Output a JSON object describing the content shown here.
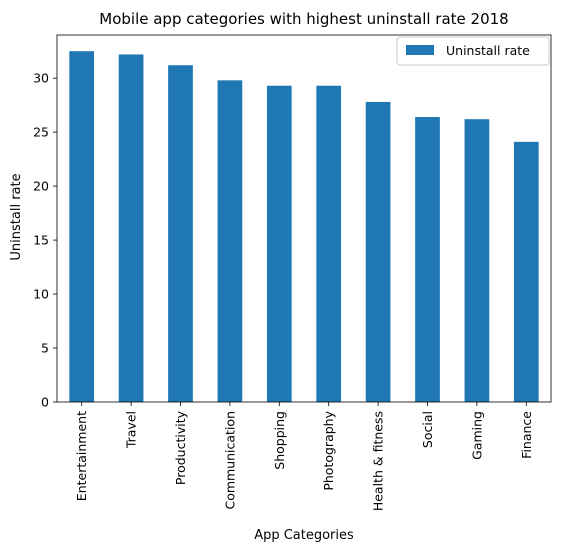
{
  "chart_data": {
    "type": "bar",
    "title": "Mobile app categories with highest uninstall rate 2018",
    "xlabel": "App Categories",
    "ylabel": "Uninstall rate",
    "categories": [
      "Entertainment",
      "Travel",
      "Productivity",
      "Communication",
      "Shopping",
      "Photography",
      "Health & fitness",
      "Social",
      "Gaming",
      "Finance"
    ],
    "series": [
      {
        "name": "Uninstall rate",
        "values": [
          32.5,
          32.2,
          31.2,
          29.8,
          29.3,
          29.3,
          27.8,
          26.4,
          26.2,
          24.1
        ],
        "color": "#1f77b4"
      }
    ],
    "ylim": [
      0,
      34
    ],
    "yticks": [
      0,
      5,
      10,
      15,
      20,
      25,
      30
    ],
    "grid": false,
    "legend_position": "top-right"
  }
}
